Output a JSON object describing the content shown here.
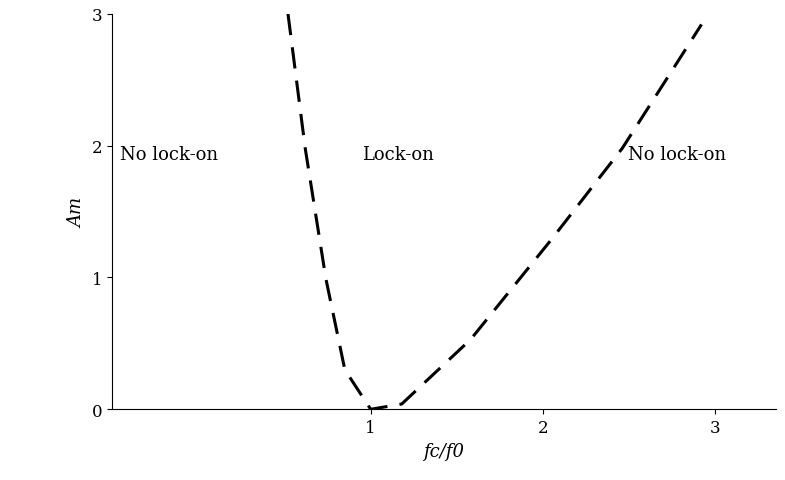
{
  "chart_data": {
    "type": "line",
    "x": [
      0.52,
      0.62,
      0.74,
      0.85,
      1.0,
      1.18,
      1.58,
      2.05,
      2.46,
      2.92
    ],
    "values": [
      3.0,
      1.98,
      0.99,
      0.3,
      0.0,
      0.04,
      0.53,
      1.29,
      1.98,
      2.92
    ],
    "color": "#000000",
    "line_style": "dashed",
    "x_label": "fc/f0",
    "y_label": "Am",
    "xlim": [
      -0.5,
      3.35
    ],
    "ylim": [
      0,
      3
    ],
    "xticks": [
      1,
      2,
      3
    ],
    "yticks": [
      0,
      1,
      2,
      3
    ],
    "grid": false,
    "annotations": [
      {
        "text": "No lock-on",
        "x": -0.17,
        "y": 1.94
      },
      {
        "text": "Lock-on",
        "x": 1.16,
        "y": 1.94
      },
      {
        "text": "No lock-on",
        "x": 2.78,
        "y": 1.94
      }
    ]
  }
}
